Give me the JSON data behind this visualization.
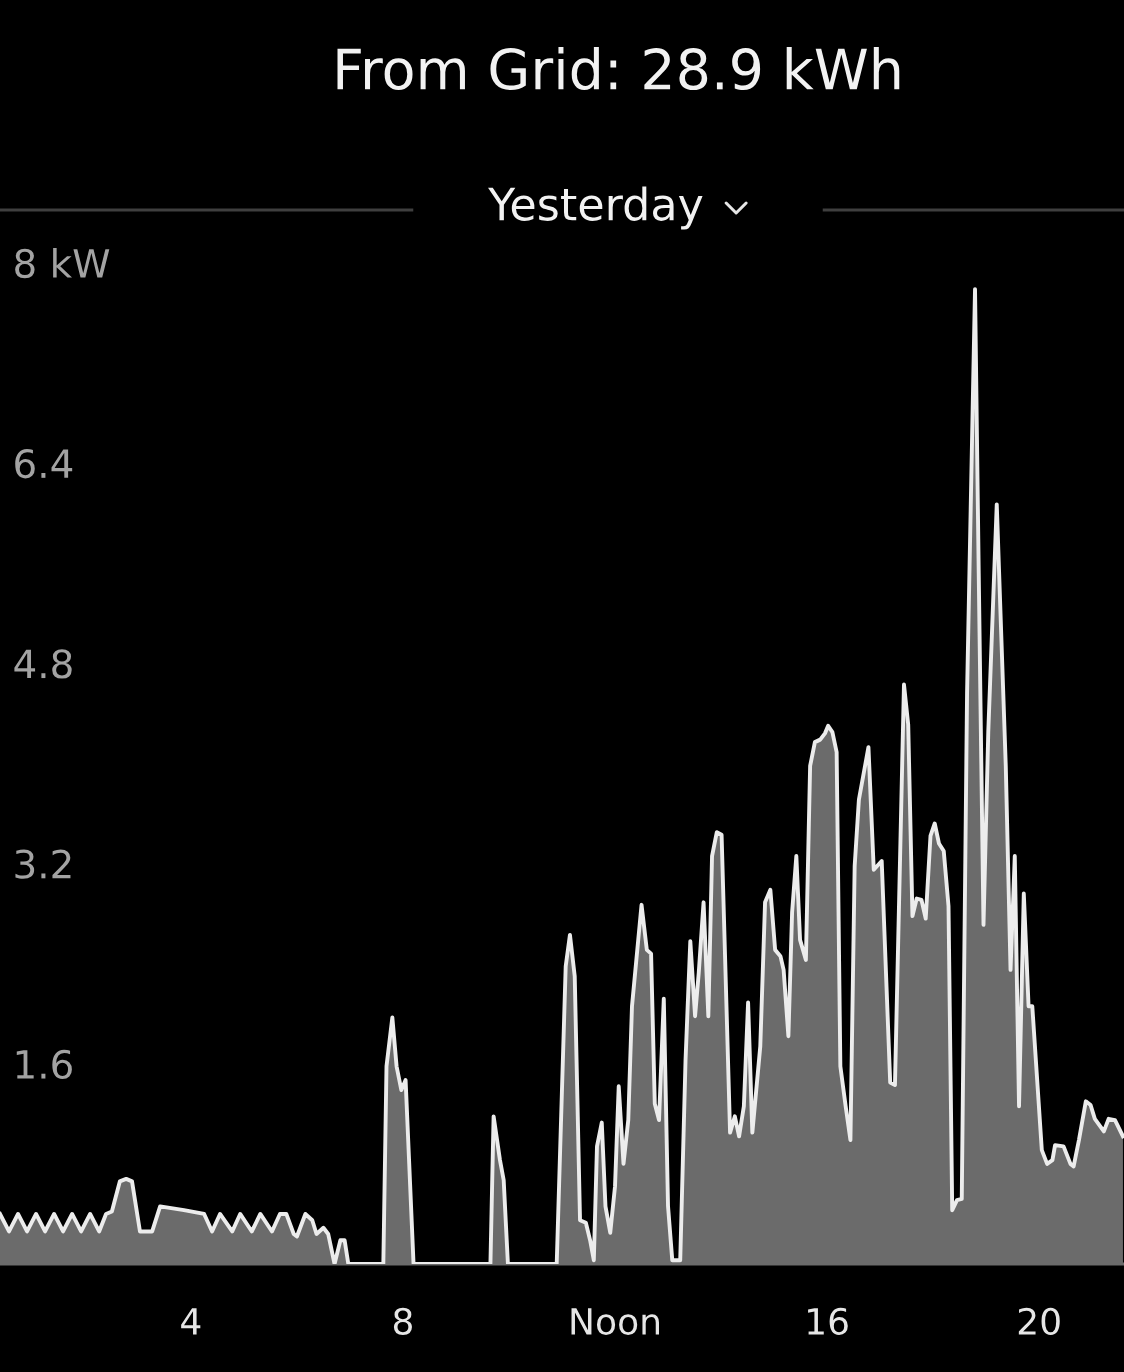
{
  "chart_data": {
    "type": "area",
    "title": "From Grid: 28.9 kWh",
    "subtitle": "Yesterday",
    "x": [
      0.4,
      0.57,
      0.74,
      0.91,
      1.08,
      1.25,
      1.42,
      1.59,
      1.76,
      1.93,
      2.1,
      2.27,
      2.4,
      2.51,
      2.66,
      2.78,
      2.89,
      3.04,
      3.27,
      3.42,
      3.87,
      4.25,
      4.4,
      4.55,
      4.78,
      4.93,
      5.15,
      5.31,
      5.53,
      5.68,
      5.8,
      5.94,
      6.0,
      6.16,
      6.29,
      6.37,
      6.5,
      6.59,
      6.71,
      6.82,
      6.9,
      6.97,
      7.63,
      7.69,
      7.8,
      7.88,
      7.97,
      8.05,
      8.2,
      9.65,
      9.71,
      9.83,
      9.9,
      9.98,
      10.9,
      11.07,
      11.15,
      11.24,
      11.34,
      11.45,
      11.53,
      11.6,
      11.66,
      11.75,
      11.82,
      11.91,
      12.0,
      12.07,
      12.16,
      12.25,
      12.32,
      12.5,
      12.6,
      12.68,
      12.75,
      12.83,
      12.92,
      13.0,
      13.08,
      13.23,
      13.33,
      13.42,
      13.51,
      13.58,
      13.67,
      13.76,
      13.83,
      13.92,
      14.01,
      14.17,
      14.26,
      14.34,
      14.43,
      14.51,
      14.59,
      14.74,
      14.83,
      14.93,
      15.02,
      15.12,
      15.18,
      15.27,
      15.34,
      15.42,
      15.49,
      15.6,
      15.68,
      15.77,
      15.87,
      15.96,
      16.02,
      16.1,
      16.18,
      16.25,
      16.35,
      16.44,
      16.52,
      16.6,
      16.78,
      16.88,
      17.03,
      17.19,
      17.28,
      17.45,
      17.53,
      17.61,
      17.69,
      17.78,
      17.86,
      17.95,
      18.03,
      18.11,
      18.2,
      18.29,
      18.36,
      18.45,
      18.54,
      18.64,
      18.79,
      18.86,
      18.95,
      19.04,
      19.2,
      19.37,
      19.46,
      19.54,
      19.62,
      19.71,
      19.8,
      19.87,
      20.05,
      20.15,
      20.25,
      20.3,
      20.46,
      20.59,
      20.65,
      20.75,
      20.88,
      20.97,
      21.05,
      21.22,
      21.31,
      21.43,
      21.58
    ],
    "series": [
      {
        "color": "#6b6b6b",
        "values": [
          0.4,
          0.26,
          0.4,
          0.26,
          0.4,
          0.26,
          0.4,
          0.26,
          0.4,
          0.26,
          0.4,
          0.26,
          0.4,
          0.42,
          0.66,
          0.68,
          0.66,
          0.26,
          0.26,
          0.46,
          0.43,
          0.4,
          0.26,
          0.4,
          0.26,
          0.4,
          0.26,
          0.4,
          0.26,
          0.4,
          0.4,
          0.24,
          0.22,
          0.4,
          0.35,
          0.24,
          0.29,
          0.24,
          0,
          0.19,
          0.19,
          0,
          0,
          1.58,
          1.97,
          1.58,
          1.39,
          1.47,
          0,
          0,
          1.18,
          0.83,
          0.67,
          0,
          0,
          2.38,
          2.63,
          2.3,
          0.35,
          0.33,
          0.19,
          0.03,
          0.94,
          1.13,
          0.46,
          0.25,
          0.62,
          1.42,
          0.8,
          1.15,
          2.06,
          2.87,
          2.51,
          2.48,
          1.28,
          1.15,
          2.12,
          0.46,
          0.03,
          0.03,
          1.63,
          2.58,
          1.98,
          2.33,
          2.89,
          1.98,
          3.26,
          3.45,
          3.43,
          1.05,
          1.18,
          1.02,
          1.26,
          2.09,
          1.05,
          1.74,
          2.89,
          2.99,
          2.51,
          2.46,
          2.35,
          1.82,
          2.81,
          3.26,
          2.59,
          2.43,
          3.98,
          4.17,
          4.19,
          4.24,
          4.3,
          4.25,
          4.09,
          1.58,
          1.26,
          0.99,
          3.18,
          3.71,
          4.13,
          3.15,
          3.22,
          1.45,
          1.43,
          4.63,
          4.31,
          2.78,
          2.92,
          2.91,
          2.76,
          3.42,
          3.52,
          3.36,
          3.3,
          2.86,
          0.43,
          0.51,
          0.52,
          4.56,
          7.79,
          5.52,
          2.71,
          4.25,
          6.07,
          3.98,
          2.35,
          3.26,
          1.26,
          2.96,
          2.06,
          2.06,
          0.91,
          0.8,
          0.83,
          0.95,
          0.94,
          0.8,
          0.78,
          0.99,
          1.3,
          1.27,
          1.16,
          1.06,
          1.16,
          1.15,
          1.02
        ]
      }
    ],
    "xlim": [
      0.4,
      21.6
    ],
    "xticks": [
      4,
      8,
      {
        "value": 12,
        "label": "Noon"
      },
      16,
      20
    ],
    "ylim": [
      0,
      10.1
    ],
    "yticks": [
      1.6,
      3.2,
      4.8,
      6.4,
      {
        "value": 8,
        "label": "8 kW"
      }
    ],
    "grid": false
  }
}
